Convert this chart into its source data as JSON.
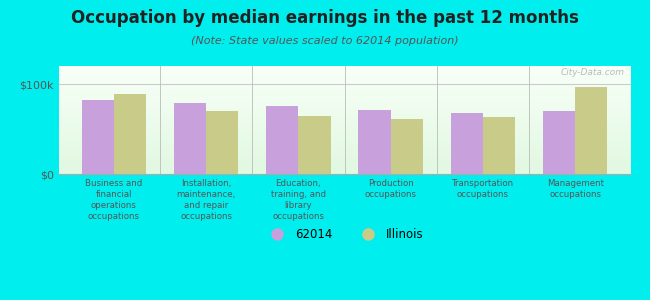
{
  "title": "Occupation by median earnings in the past 12 months",
  "subtitle": "(Note: State values scaled to 62014 population)",
  "categories": [
    "Business and\nfinancial\noperations\noccupations",
    "Installation,\nmaintenance,\nand repair\noccupations",
    "Education,\ntraining, and\nlibrary\noccupations",
    "Production\noccupations",
    "Transportation\noccupations",
    "Management\noccupations"
  ],
  "values_local": [
    82000,
    79000,
    76000,
    71000,
    68000,
    70000
  ],
  "values_state": [
    89000,
    70000,
    65000,
    61000,
    63000,
    97000
  ],
  "bar_color_local": "#c8a0dc",
  "bar_color_state": "#c8cc88",
  "ylim": [
    0,
    120000
  ],
  "ytick_labels": [
    "$0",
    "$100k"
  ],
  "ytick_vals": [
    0,
    100000
  ],
  "legend_local": "62014",
  "legend_state": "Illinois",
  "bg_color": "#00eeee",
  "title_color": "#222222",
  "subtitle_color": "#555555",
  "bar_width": 0.35,
  "title_fontsize": 12,
  "subtitle_fontsize": 8,
  "tick_label_fontsize": 7,
  "watermark": "City-Data.com"
}
